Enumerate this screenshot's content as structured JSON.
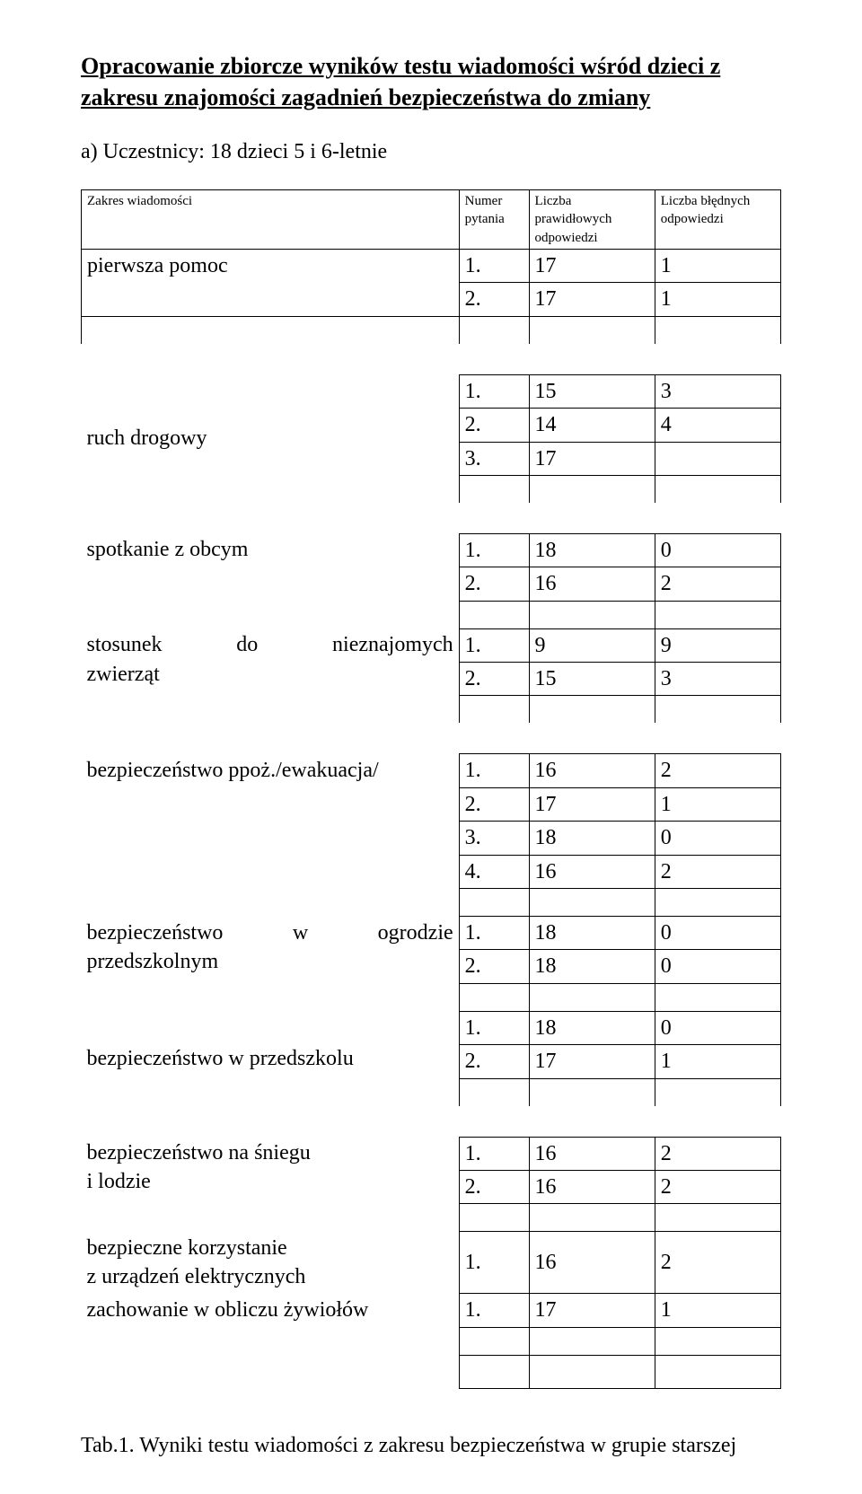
{
  "title": "Opracowanie zbiorcze wyników testu wiadomości wśród dzieci z zakresu znajomości zagadnień bezpieczeństwa  do zmiany",
  "participants": "a) Uczestnicy: 18 dzieci 5 i 6-letnie",
  "headers": {
    "scope": "Zakres wiadomości",
    "num": "Numer pytania",
    "correct": "Liczba prawidłowych odpowiedzi",
    "wrong": "Liczba błędnych odpowiedzi"
  },
  "sections": {
    "s0": {
      "label": "pierwsza pomoc",
      "rows": [
        {
          "n": "1.",
          "c": "17",
          "w": "1"
        },
        {
          "n": "2.",
          "c": "17",
          "w": "1"
        }
      ]
    },
    "s1": {
      "label": "ruch drogowy",
      "rows": [
        {
          "n": "1.",
          "c": "15",
          "w": "3"
        },
        {
          "n": "2.",
          "c": "14",
          "w": "4"
        },
        {
          "n": "3.",
          "c": "17",
          "w": ""
        }
      ]
    },
    "s2": {
      "label": "spotkanie z obcym",
      "rows": [
        {
          "n": "1.",
          "c": "18",
          "w": "0"
        },
        {
          "n": "2.",
          "c": "16",
          "w": "2"
        }
      ]
    },
    "s3": {
      "label": "stosunek do nieznajomych zwierząt",
      "rows": [
        {
          "n": "1.",
          "c": "9",
          "w": "9"
        },
        {
          "n": "2.",
          "c": "15",
          "w": "3"
        }
      ]
    },
    "s4": {
      "label": "bezpieczeństwo ppoż./ewakuacja/",
      "rows": [
        {
          "n": "1.",
          "c": "16",
          "w": "2"
        },
        {
          "n": "2.",
          "c": "17",
          "w": "1"
        },
        {
          "n": "3.",
          "c": "18",
          "w": "0"
        },
        {
          "n": "4.",
          "c": "16",
          "w": "2"
        }
      ]
    },
    "s5": {
      "label": "bezpieczeństwo w ogrodzie przedszkolnym",
      "rows": [
        {
          "n": "1.",
          "c": "18",
          "w": "0"
        },
        {
          "n": "2.",
          "c": "18",
          "w": "0"
        }
      ]
    },
    "s6": {
      "label": "bezpieczeństwo w przedszkolu",
      "rows": [
        {
          "n": "1.",
          "c": "18",
          "w": "0"
        },
        {
          "n": "2.",
          "c": "17",
          "w": "1"
        }
      ]
    },
    "s7": {
      "label": "bezpieczeństwo na śniegu\n i lodzie",
      "rows": [
        {
          "n": "1.",
          "c": "16",
          "w": "2"
        },
        {
          "n": "2.",
          "c": "16",
          "w": "2"
        }
      ]
    },
    "s8": {
      "label": "bezpieczne korzystanie\nz urządzeń elektrycznych",
      "rows": [
        {
          "n": "1.",
          "c": "16",
          "w": "2"
        }
      ]
    },
    "s9": {
      "label": "zachowanie w obliczu żywiołów",
      "rows": [
        {
          "n": "1.",
          "c": "17",
          "w": "1"
        }
      ]
    }
  },
  "sep_labels": {
    "s3_line1": "stosunek",
    "s3_mid": "do",
    "s3_end": "nieznajomych",
    "s3_line2": "zwierząt",
    "s5_line1a": "bezpieczeństwo",
    "s5_line1b": "w",
    "s5_line1c": "ogrodzie",
    "s5_line2": "przedszkolnym",
    "s7_line1": "bezpieczeństwo na śniegu",
    "s7_line2": " i lodzie",
    "s8_line1": "bezpieczne korzystanie",
    "s8_line2": "z urządzeń elektrycznych"
  },
  "caption": "Tab.1. Wyniki testu wiadomości z zakresu bezpieczeństwa w grupie starszej"
}
